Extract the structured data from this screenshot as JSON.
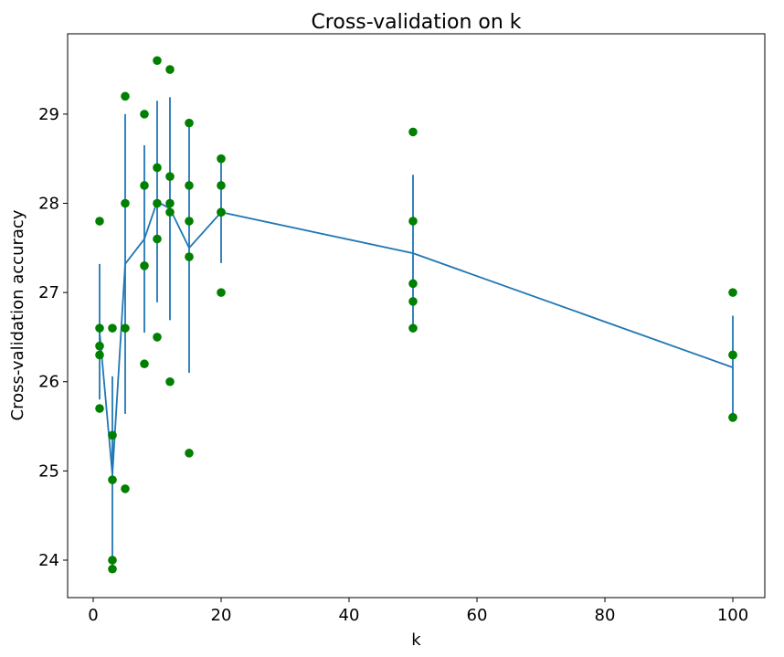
{
  "chart_data": {
    "type": "scatter",
    "title": "Cross-validation on k",
    "xlabel": "k",
    "ylabel": "Cross-validation accuracy",
    "xlim": [
      -4,
      105
    ],
    "ylim": [
      23.58,
      29.9
    ],
    "xticks": [
      0,
      20,
      40,
      60,
      80,
      100
    ],
    "yticks": [
      24,
      25,
      26,
      27,
      28,
      29
    ],
    "grid": false,
    "legend": "none",
    "colors": {
      "points": "#008000",
      "line": "#1f77b4",
      "axes": "#000000"
    },
    "points": [
      {
        "k": 1,
        "values": [
          27.8,
          26.6,
          26.4,
          26.3,
          25.7
        ]
      },
      {
        "k": 3,
        "values": [
          26.6,
          25.4,
          24.9,
          24.0,
          23.9
        ]
      },
      {
        "k": 5,
        "values": [
          29.2,
          28.0,
          26.6,
          24.8
        ]
      },
      {
        "k": 8,
        "values": [
          29.0,
          28.2,
          27.3,
          26.2
        ]
      },
      {
        "k": 10,
        "values": [
          29.6,
          28.4,
          28.0,
          27.6,
          26.5
        ]
      },
      {
        "k": 12,
        "values": [
          29.5,
          28.3,
          28.0,
          27.9,
          26.0
        ]
      },
      {
        "k": 15,
        "values": [
          28.9,
          28.2,
          27.8,
          27.4,
          25.2
        ]
      },
      {
        "k": 20,
        "values": [
          28.5,
          28.2,
          27.9,
          27.9,
          27.0
        ]
      },
      {
        "k": 50,
        "values": [
          28.8,
          27.8,
          27.1,
          26.9,
          26.6
        ]
      },
      {
        "k": 100,
        "values": [
          27.0,
          26.3,
          26.3,
          25.6,
          25.6
        ]
      }
    ],
    "mean_line": {
      "x": [
        1,
        3,
        5,
        8,
        10,
        12,
        15,
        20,
        50,
        100
      ],
      "mean": [
        26.56,
        24.96,
        27.32,
        27.6,
        28.02,
        27.94,
        27.5,
        27.9,
        27.44,
        26.16
      ],
      "std": [
        0.76,
        1.1,
        1.68,
        1.05,
        1.13,
        1.25,
        1.4,
        0.57,
        0.88,
        0.58
      ]
    }
  }
}
